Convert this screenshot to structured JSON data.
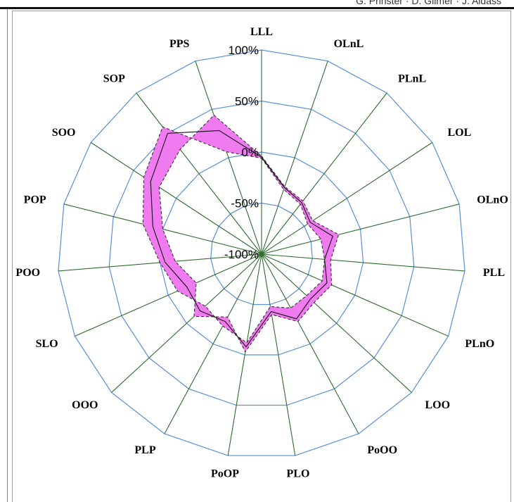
{
  "caption": "G. Prinster · D. Gilmer · J. Aldass",
  "chart_data": {
    "type": "radar",
    "categories": [
      "LLL",
      "OLnL",
      "PLnL",
      "LOL",
      "OLnO",
      "PLL",
      "PLnO",
      "LOO",
      "PoOO",
      "PLO",
      "PoOP",
      "PLP",
      "OOO",
      "SLO",
      "POO",
      "POP",
      "SOO",
      "SOP",
      "PPS"
    ],
    "rings": [
      -100,
      -50,
      0,
      50,
      100
    ],
    "ring_labels": [
      "-100%",
      "-50%",
      "0%",
      "50%",
      "100%"
    ],
    "rlim": [
      -100,
      100
    ],
    "series": [
      {
        "values": [
          -6,
          -33,
          -38,
          -46,
          -40,
          -38,
          -35,
          -40,
          -40,
          -48,
          -12,
          -20,
          -25,
          -10,
          0,
          20,
          38,
          58,
          6
        ]
      },
      {
        "values": [
          -5,
          -31,
          -36,
          -43,
          -28,
          -38,
          -30,
          -35,
          -28,
          -43,
          -8,
          -25,
          -18,
          -20,
          -5,
          10,
          30,
          50,
          28
        ]
      },
      {
        "values": [
          -4,
          -30,
          -34,
          -40,
          -22,
          -32,
          -25,
          -30,
          -25,
          -40,
          -3,
          -30,
          -10,
          -30,
          -15,
          0,
          20,
          30,
          44
        ]
      }
    ],
    "colors": {
      "band_fill": "#f07af0",
      "band_stroke": "#333333",
      "median": "#111111",
      "ring": "#5a8fd8",
      "spoke": "#2e6b2e"
    },
    "grid": true
  }
}
